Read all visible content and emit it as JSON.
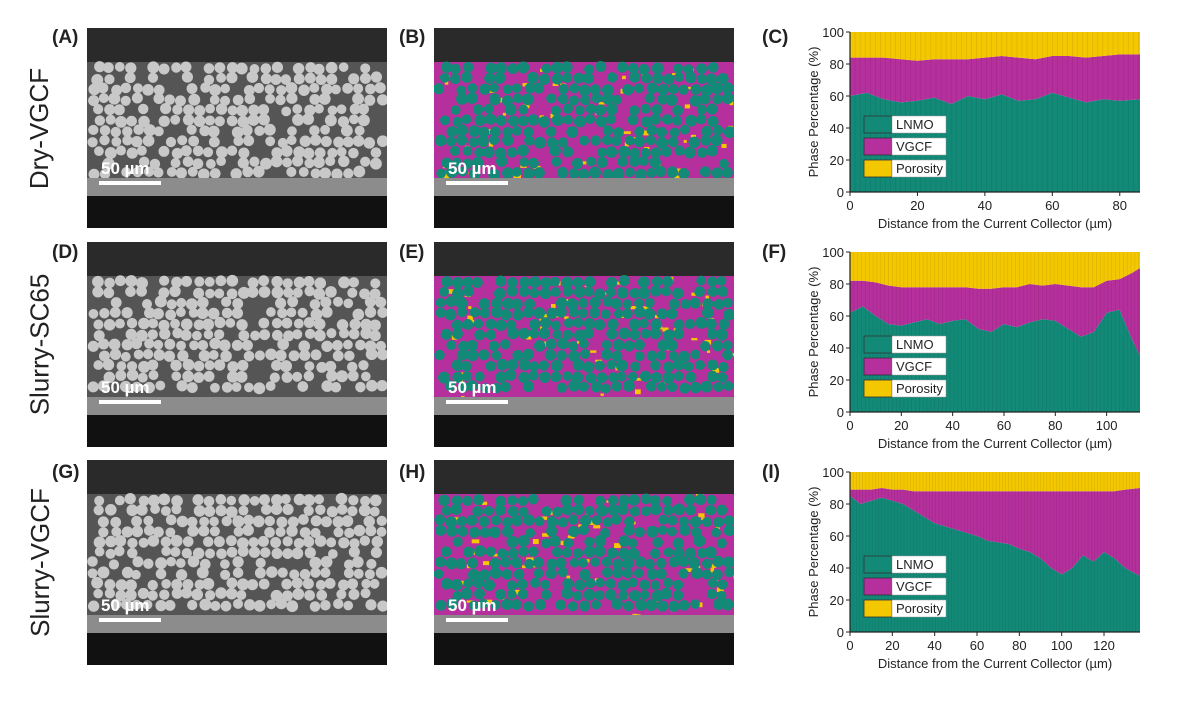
{
  "rows": [
    {
      "row_label": "Dry-VGCF",
      "image_panels": [
        {
          "letter": "(A)",
          "scale_bar": "50 µm",
          "kind": "sem"
        },
        {
          "letter": "(B)",
          "scale_bar": "50 µm",
          "kind": "segmented"
        }
      ],
      "chart_letter": "(C)"
    },
    {
      "row_label": "Slurry-SC65",
      "image_panels": [
        {
          "letter": "(D)",
          "scale_bar": "50 µm",
          "kind": "sem"
        },
        {
          "letter": "(E)",
          "scale_bar": "50 µm",
          "kind": "segmented"
        }
      ],
      "chart_letter": "(F)"
    },
    {
      "row_label": "Slurry-VGCF",
      "image_panels": [
        {
          "letter": "(G)",
          "scale_bar": "50 µm",
          "kind": "sem"
        },
        {
          "letter": "(H)",
          "scale_bar": "50 µm",
          "kind": "segmented"
        }
      ],
      "chart_letter": "(I)"
    }
  ],
  "colors": {
    "LNMO": "#138a78",
    "VGCF": "#b5309c",
    "Porosity": "#f4c800",
    "sem_background": "#555555",
    "sem_particle": "#c8c8c8"
  },
  "chart_data": [
    {
      "type": "area",
      "stacked": true,
      "xlabel": "Distance from the Current Collector (µm)",
      "ylabel": "Phase Percentage (%)",
      "xlim": [
        0,
        86
      ],
      "ylim": [
        0,
        100
      ],
      "xticks": [
        0,
        20,
        40,
        60,
        80
      ],
      "yticks": [
        0,
        20,
        40,
        60,
        80,
        100
      ],
      "legend_position": "bottom-left",
      "x": [
        0,
        5,
        10,
        15,
        20,
        25,
        30,
        35,
        40,
        45,
        50,
        55,
        60,
        65,
        70,
        75,
        80,
        86
      ],
      "series": [
        {
          "name": "LNMO",
          "values": [
            60,
            62,
            58,
            56,
            57,
            59,
            55,
            60,
            58,
            61,
            57,
            58,
            62,
            59,
            56,
            58,
            57,
            58
          ]
        },
        {
          "name": "VGCF",
          "values": [
            24,
            22,
            26,
            27,
            25,
            24,
            28,
            23,
            26,
            24,
            27,
            25,
            23,
            26,
            28,
            27,
            29,
            28
          ]
        },
        {
          "name": "Porosity",
          "values": [
            16,
            16,
            16,
            17,
            18,
            17,
            17,
            17,
            16,
            15,
            16,
            17,
            15,
            15,
            16,
            15,
            14,
            14
          ]
        }
      ]
    },
    {
      "type": "area",
      "stacked": true,
      "xlabel": "Distance from the Current Collector (µm)",
      "ylabel": "Phase Percentage (%)",
      "xlim": [
        0,
        113
      ],
      "ylim": [
        0,
        100
      ],
      "xticks": [
        0,
        20,
        40,
        60,
        80,
        100
      ],
      "yticks": [
        0,
        20,
        40,
        60,
        80,
        100
      ],
      "legend_position": "bottom-left",
      "x": [
        0,
        5,
        10,
        15,
        20,
        25,
        30,
        35,
        40,
        45,
        50,
        55,
        60,
        65,
        70,
        75,
        80,
        85,
        90,
        95,
        100,
        105,
        110,
        113
      ],
      "series": [
        {
          "name": "LNMO",
          "values": [
            62,
            66,
            60,
            55,
            54,
            56,
            58,
            55,
            57,
            58,
            52,
            50,
            55,
            53,
            56,
            58,
            57,
            52,
            47,
            50,
            62,
            64,
            45,
            35
          ]
        },
        {
          "name": "VGCF",
          "values": [
            20,
            16,
            21,
            24,
            24,
            22,
            20,
            23,
            21,
            20,
            25,
            27,
            23,
            25,
            24,
            21,
            23,
            27,
            31,
            28,
            20,
            19,
            42,
            55
          ]
        },
        {
          "name": "Porosity",
          "values": [
            18,
            18,
            19,
            21,
            22,
            22,
            22,
            22,
            22,
            22,
            23,
            23,
            22,
            22,
            20,
            21,
            20,
            21,
            22,
            22,
            18,
            17,
            13,
            10
          ]
        }
      ]
    },
    {
      "type": "area",
      "stacked": true,
      "xlabel": "Distance from the Current Collector (µm)",
      "ylabel": "Phase Percentage (%)",
      "xlim": [
        0,
        137
      ],
      "ylim": [
        0,
        100
      ],
      "xticks": [
        0,
        20,
        40,
        60,
        80,
        100,
        120
      ],
      "yticks": [
        0,
        20,
        40,
        60,
        80,
        100
      ],
      "legend_position": "bottom-left",
      "x": [
        0,
        5,
        10,
        15,
        20,
        25,
        30,
        35,
        40,
        45,
        50,
        55,
        60,
        65,
        70,
        75,
        80,
        85,
        90,
        95,
        100,
        105,
        110,
        115,
        120,
        125,
        130,
        137
      ],
      "series": [
        {
          "name": "LNMO",
          "values": [
            85,
            80,
            82,
            84,
            82,
            80,
            76,
            72,
            68,
            66,
            64,
            62,
            60,
            57,
            56,
            55,
            52,
            50,
            46,
            40,
            36,
            40,
            48,
            44,
            50,
            46,
            40,
            35
          ]
        },
        {
          "name": "VGCF",
          "values": [
            4,
            9,
            7,
            6,
            7,
            9,
            12,
            16,
            20,
            22,
            24,
            26,
            28,
            31,
            32,
            33,
            36,
            38,
            42,
            48,
            52,
            48,
            40,
            44,
            38,
            42,
            49,
            55
          ]
        },
        {
          "name": "Porosity",
          "values": [
            11,
            11,
            11,
            10,
            11,
            11,
            12,
            12,
            12,
            12,
            12,
            12,
            12,
            12,
            12,
            12,
            12,
            12,
            12,
            12,
            12,
            12,
            12,
            12,
            12,
            12,
            11,
            10
          ]
        }
      ]
    }
  ]
}
